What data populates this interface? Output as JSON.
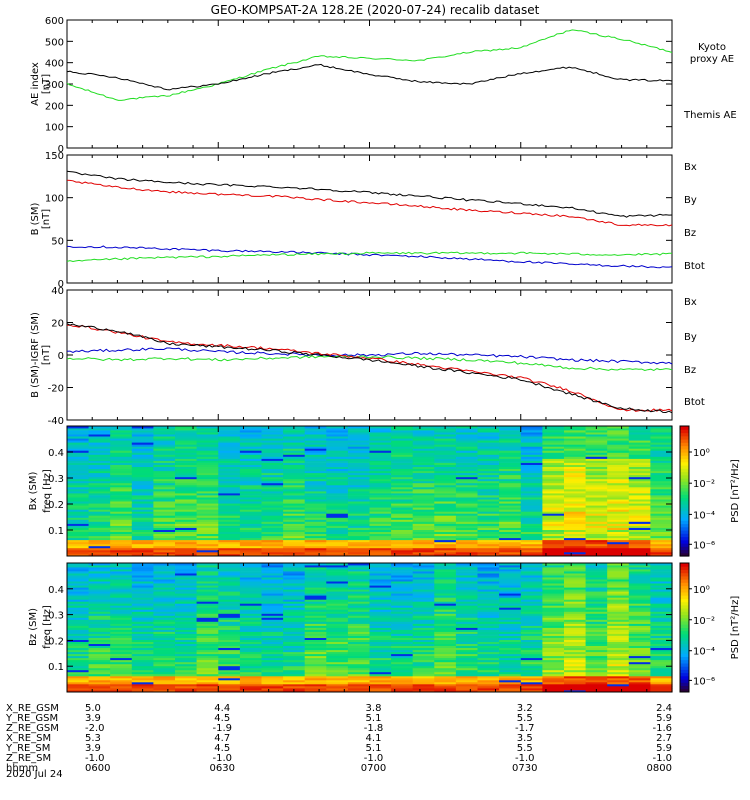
{
  "title": "GEO-KOMPSAT-2A 128.2E (2020-07-24) recalib dataset",
  "colors": {
    "black": "#000000",
    "red": "#e00000",
    "green": "#22dd22",
    "blue": "#0000cc"
  },
  "chart_data": [
    {
      "type": "line",
      "ylabel": "AE index",
      "yunit": "[nT]",
      "ylim": [
        0,
        600
      ],
      "yticks": [
        "0",
        "100",
        "200",
        "300",
        "400",
        "500",
        "600"
      ],
      "x_minutes": [
        0,
        10,
        20,
        30,
        40,
        50,
        60,
        70,
        80,
        90,
        100,
        110,
        120
      ],
      "series": [
        {
          "name": "Kyoto proxy AE",
          "label_lines": [
            "Kyoto",
            "proxy AE"
          ],
          "color": "#22dd22",
          "values": [
            300,
            225,
            245,
            300,
            370,
            430,
            420,
            410,
            450,
            470,
            555,
            510,
            450
          ]
        },
        {
          "name": "Themis AE",
          "label_lines": [
            "Themis AE"
          ],
          "color": "#000000",
          "values": [
            360,
            330,
            275,
            300,
            350,
            390,
            345,
            310,
            300,
            350,
            380,
            320,
            315
          ]
        }
      ]
    },
    {
      "type": "line",
      "ylabel": "B (SM)",
      "yunit": "[nT]",
      "ylim": [
        0,
        150
      ],
      "yticks": [
        "0",
        "50",
        "100",
        "150"
      ],
      "x_minutes": [
        0,
        10,
        20,
        30,
        40,
        50,
        60,
        70,
        80,
        90,
        100,
        110,
        120
      ],
      "series": [
        {
          "name": "Bx",
          "color": "#0000cc",
          "values": [
            43,
            42,
            40,
            38,
            37,
            35,
            33,
            31,
            28,
            25,
            22,
            20,
            18
          ]
        },
        {
          "name": "By",
          "color": "#22dd22",
          "values": [
            25,
            28,
            30,
            31,
            33,
            34,
            35,
            35,
            35,
            35,
            34,
            33,
            34
          ]
        },
        {
          "name": "Bz",
          "color": "#e00000",
          "values": [
            120,
            112,
            107,
            104,
            102,
            98,
            94,
            90,
            85,
            82,
            78,
            68,
            68
          ]
        },
        {
          "name": "Btot",
          "color": "#000000",
          "values": [
            130,
            122,
            118,
            115,
            113,
            110,
            106,
            102,
            97,
            93,
            88,
            78,
            80
          ]
        }
      ]
    },
    {
      "type": "line",
      "ylabel": "B (SM)-IGRF (SM)",
      "yunit": "[nT]",
      "ylim": [
        -40,
        40
      ],
      "yticks": [
        "-40",
        "-20",
        "0",
        "20",
        "40"
      ],
      "x_minutes": [
        0,
        10,
        20,
        30,
        40,
        50,
        60,
        70,
        80,
        90,
        100,
        110,
        120
      ],
      "series": [
        {
          "name": "Bx",
          "color": "#0000cc",
          "values": [
            2,
            3,
            4,
            2,
            1,
            0,
            0,
            1,
            0,
            -1,
            -3,
            -4,
            -5
          ]
        },
        {
          "name": "By",
          "color": "#22dd22",
          "values": [
            -2,
            -3,
            -2,
            -3,
            -2,
            -1,
            -1,
            -2,
            -3,
            -5,
            -8,
            -9,
            -9
          ]
        },
        {
          "name": "Bz",
          "color": "#e00000",
          "values": [
            19,
            14,
            8,
            6,
            4,
            1,
            -2,
            -6,
            -10,
            -14,
            -22,
            -34,
            -34
          ]
        },
        {
          "name": "Btot",
          "color": "#000000",
          "values": [
            19,
            15,
            7,
            5,
            3,
            0,
            -3,
            -7,
            -11,
            -15,
            -24,
            -33,
            -35
          ]
        }
      ]
    },
    {
      "type": "heatmap",
      "component": "Bx (SM)",
      "ylabel": "freq [Hz]",
      "yticks": [
        "0.1",
        "0.2",
        "0.3",
        "0.4"
      ],
      "colorbar_label": "PSD [nT²/Hz]",
      "colorbar_ticks": [
        "10⁰",
        "10⁻²",
        "10⁻⁴",
        "10⁻⁶"
      ]
    },
    {
      "type": "heatmap",
      "component": "Bz (SM)",
      "ylabel": "freq [Hz]",
      "yticks": [
        "0.1",
        "0.2",
        "0.3",
        "0.4"
      ],
      "colorbar_label": "PSD [nT²/Hz]",
      "colorbar_ticks": [
        "10⁰",
        "10⁻²",
        "10⁻⁴",
        "10⁻⁶"
      ]
    }
  ],
  "orbit_table": {
    "rows": [
      {
        "label": "X_RE_GSM",
        "values": [
          "5.0",
          "4.4",
          "3.8",
          "3.2",
          "2.4"
        ]
      },
      {
        "label": "Y_RE_GSM",
        "values": [
          "3.9",
          "4.5",
          "5.1",
          "5.5",
          "5.9"
        ]
      },
      {
        "label": "Z_RE_GSM",
        "values": [
          "-2.0",
          "-1.9",
          "-1.8",
          "-1.7",
          "-1.6"
        ]
      },
      {
        "label": "X_RE_SM",
        "values": [
          "5.3",
          "4.7",
          "4.1",
          "3.5",
          "2.7"
        ]
      },
      {
        "label": "Y_RE_SM",
        "values": [
          "3.9",
          "4.5",
          "5.1",
          "5.5",
          "5.9"
        ]
      },
      {
        "label": "Z_RE_SM",
        "values": [
          "-1.0",
          "-1.0",
          "-1.0",
          "-1.0",
          "-1.0"
        ]
      },
      {
        "label": "hhmm",
        "values": [
          "0600",
          "0630",
          "0700",
          "0730",
          "0800"
        ]
      }
    ],
    "date": "2020 Jul 24"
  }
}
